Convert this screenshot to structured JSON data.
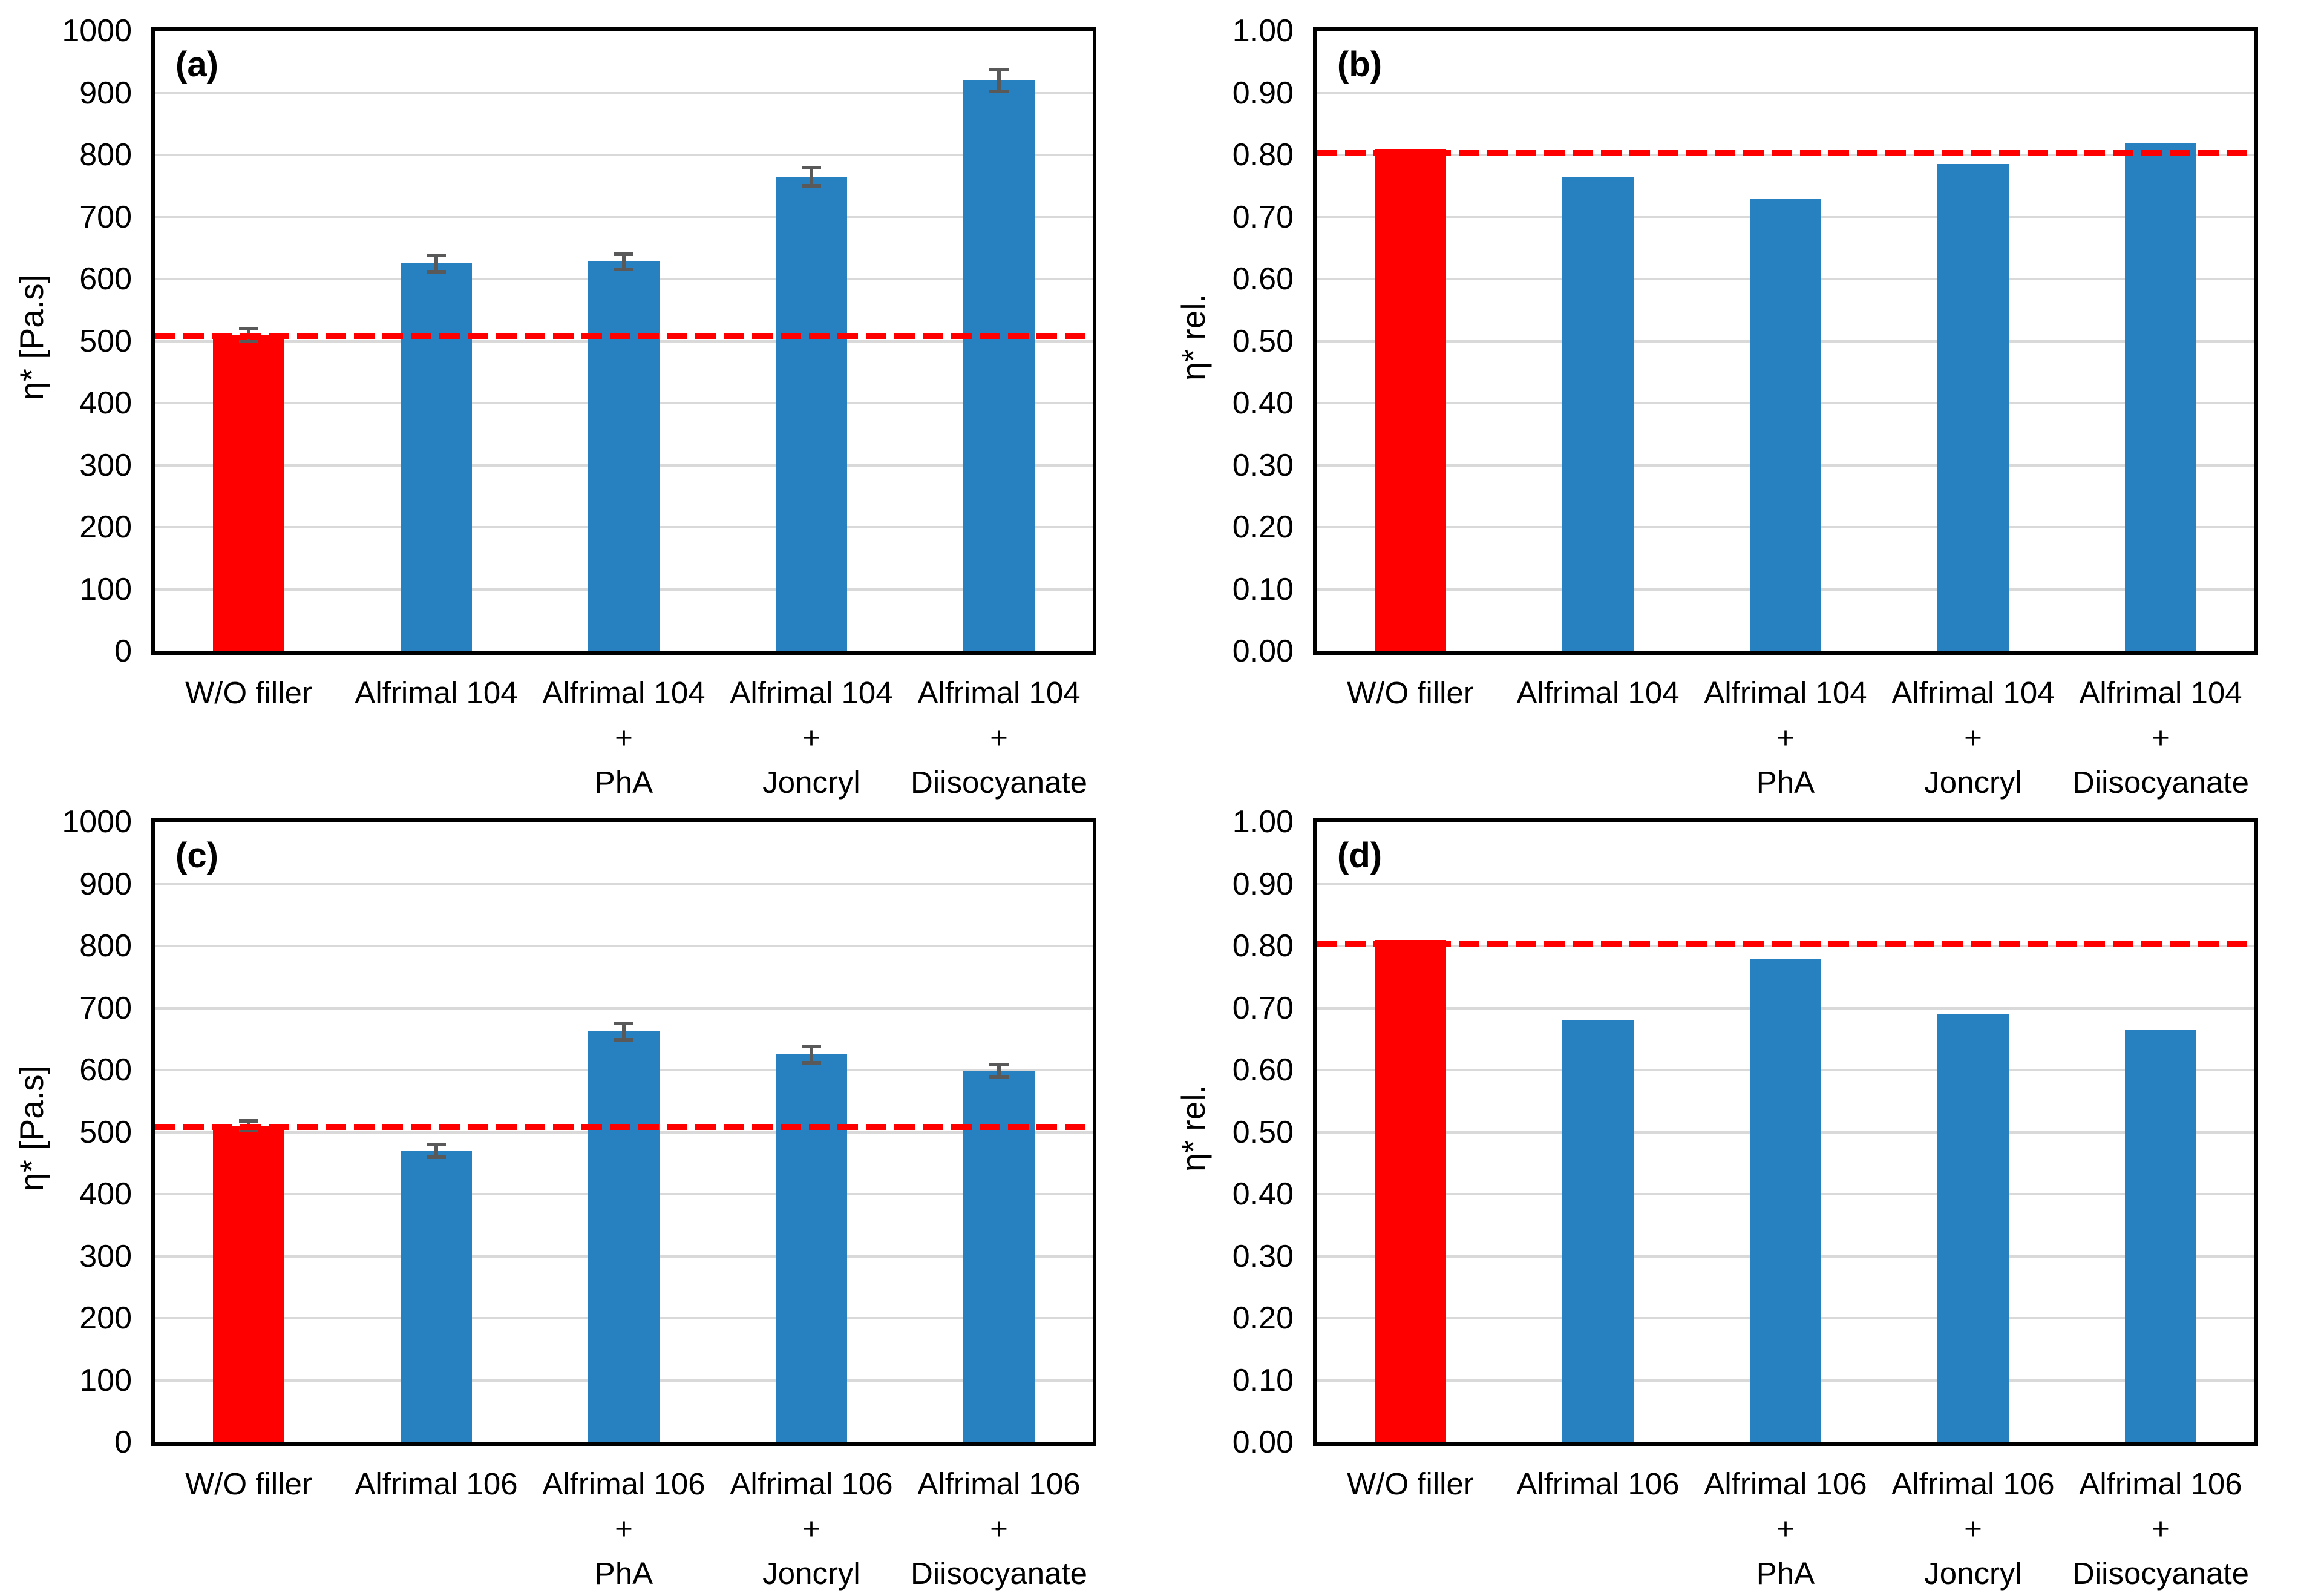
{
  "colors": {
    "bar_blue": "#2780BF",
    "bar_red": "#FF0000",
    "ref_line": "#FF0000",
    "error_bar": "#595959",
    "gridline": "#D9D9D9",
    "frame": "#000000"
  },
  "chart_data": [
    {
      "type": "bar",
      "panel_label": "(a)",
      "ylabel": "η* [Pa.s]",
      "ymin": 0,
      "ymax": 1000,
      "ystep": 100,
      "decimals": 0,
      "grid": true,
      "categories": [
        "W/O filler",
        "Alfrimal 104",
        "Alfrimal 104 +\nPhA",
        "Alfrimal 104 +\nJoncryl",
        "Alfrimal 104 +\nDiisocyanate"
      ],
      "values": [
        510,
        625,
        628,
        765,
        920
      ],
      "errors": [
        10,
        13,
        12,
        15,
        18
      ],
      "ref_line": 508,
      "bar_colors": [
        "#FF0000",
        "#2780BF",
        "#2780BF",
        "#2780BF",
        "#2780BF"
      ]
    },
    {
      "type": "bar",
      "panel_label": "(b)",
      "ylabel": "η* rel.",
      "ymin": 0,
      "ymax": 1.0,
      "ystep": 0.1,
      "decimals": 2,
      "grid": true,
      "categories": [
        "W/O filler",
        "Alfrimal 104",
        "Alfrimal 104 +\nPhA",
        "Alfrimal 104 +\nJoncryl",
        "Alfrimal 104 +\nDiisocyanate"
      ],
      "values": [
        0.81,
        0.765,
        0.73,
        0.785,
        0.82
      ],
      "errors": null,
      "ref_line": 0.803,
      "bar_colors": [
        "#FF0000",
        "#2780BF",
        "#2780BF",
        "#2780BF",
        "#2780BF"
      ]
    },
    {
      "type": "bar",
      "panel_label": "(c)",
      "ylabel": "η* [Pa.s]",
      "ymin": 0,
      "ymax": 1000,
      "ystep": 100,
      "decimals": 0,
      "grid": true,
      "categories": [
        "W/O filler",
        "Alfrimal 106",
        "Alfrimal 106 +\nPhA",
        "Alfrimal 106 +\nJoncryl",
        "Alfrimal 106 +\nDiisocyanate"
      ],
      "values": [
        510,
        470,
        662,
        625,
        599
      ],
      "errors": [
        8,
        10,
        13,
        13,
        10
      ],
      "ref_line": 508,
      "bar_colors": [
        "#FF0000",
        "#2780BF",
        "#2780BF",
        "#2780BF",
        "#2780BF"
      ]
    },
    {
      "type": "bar",
      "panel_label": "(d)",
      "ylabel": "η* rel.",
      "ymin": 0,
      "ymax": 1.0,
      "ystep": 0.1,
      "decimals": 2,
      "grid": true,
      "categories": [
        "W/O filler",
        "Alfrimal 106",
        "Alfrimal 106 +\nPhA",
        "Alfrimal 106 +\nJoncryl",
        "Alfrimal 106 +\nDiisocyanate"
      ],
      "values": [
        0.81,
        0.68,
        0.78,
        0.69,
        0.665
      ],
      "errors": null,
      "ref_line": 0.803,
      "bar_colors": [
        "#FF0000",
        "#2780BF",
        "#2780BF",
        "#2780BF",
        "#2780BF"
      ]
    }
  ]
}
